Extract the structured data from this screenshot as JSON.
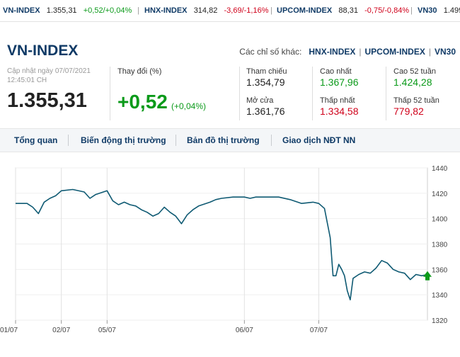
{
  "ticker": [
    {
      "name": "VN-INDEX",
      "value": "1.355,31",
      "change": "+0,52/+0,04%",
      "dir": "up"
    },
    {
      "name": "HNX-INDEX",
      "value": "314,82",
      "change": "-3,69/-1,16%",
      "dir": "down"
    },
    {
      "name": "UPCOM-INDEX",
      "value": "88,31",
      "change": "-0,75/-0,84%",
      "dir": "down"
    },
    {
      "name": "VN30",
      "value": "1.499",
      "change": "",
      "dir": "up"
    }
  ],
  "header": {
    "title": "VN-INDEX",
    "others_label": "Các chỉ số khác:",
    "others": [
      "HNX-INDEX",
      "UPCOM-INDEX",
      "VN30"
    ]
  },
  "summary": {
    "updated": "Cập nhật ngày 07/07/2021",
    "updated_time": "12:45:01 CH",
    "price": "1.355,31",
    "change_label": "Thay đổi (%)",
    "change": "+0,52",
    "change_pct": "(+0,04%)",
    "stats": [
      {
        "label": "Tham chiếu",
        "value": "1.354,79",
        "color": "neutral"
      },
      {
        "label": "Mở cửa",
        "value": "1.361,76",
        "color": "neutral"
      },
      {
        "label": "Cao nhất",
        "value": "1.367,96",
        "color": "up"
      },
      {
        "label": "Thấp nhất",
        "value": "1.334,58",
        "color": "down"
      },
      {
        "label": "Cao 52 tuần",
        "value": "1.424,28",
        "color": "up"
      },
      {
        "label": "Thấp 52 tuần",
        "value": "779,82",
        "color": "down"
      }
    ]
  },
  "tabs": [
    "Tổng quan",
    "Biến động thị trường",
    "Bản đồ thị trường",
    "Giao dịch NĐT NN"
  ],
  "chart_data": {
    "type": "line",
    "x_tick_labels": [
      "01/07",
      "02/07",
      "05/07",
      "06/07",
      "07/07"
    ],
    "ylim": [
      1320,
      1440
    ],
    "y_ticks": [
      1320,
      1340,
      1360,
      1380,
      1400,
      1420,
      1440
    ],
    "series": [
      {
        "values": [
          [
            0,
            1412
          ],
          [
            2,
            1412
          ],
          [
            3,
            1409
          ],
          [
            4,
            1404
          ],
          [
            5,
            1413
          ],
          [
            6,
            1416
          ],
          [
            7,
            1418
          ],
          [
            8,
            1422
          ],
          [
            10,
            1423
          ],
          [
            12,
            1421
          ],
          [
            13,
            1416
          ],
          [
            14,
            1419
          ],
          [
            16,
            1422
          ],
          [
            17,
            1414
          ],
          [
            18,
            1411
          ],
          [
            19,
            1413
          ],
          [
            20,
            1411
          ],
          [
            21,
            1410
          ],
          [
            22,
            1407
          ],
          [
            23,
            1405
          ],
          [
            24,
            1402
          ],
          [
            25,
            1404
          ],
          [
            26,
            1409
          ],
          [
            27,
            1405
          ],
          [
            28,
            1402
          ],
          [
            29,
            1396
          ],
          [
            30,
            1403
          ],
          [
            31,
            1407
          ],
          [
            32,
            1410
          ],
          [
            34,
            1413
          ],
          [
            35,
            1415
          ],
          [
            36,
            1416
          ],
          [
            38,
            1417
          ],
          [
            40,
            1417
          ],
          [
            41,
            1416
          ],
          [
            42,
            1417
          ],
          [
            45,
            1417
          ],
          [
            46,
            1417
          ],
          [
            48,
            1415
          ],
          [
            50,
            1412
          ],
          [
            52,
            1413
          ],
          [
            53,
            1412
          ],
          [
            54,
            1408
          ],
          [
            55,
            1385
          ],
          [
            55.5,
            1355
          ],
          [
            56,
            1355
          ],
          [
            56.5,
            1364
          ],
          [
            57,
            1360
          ],
          [
            57.5,
            1355
          ],
          [
            58,
            1343
          ],
          [
            58.5,
            1336
          ],
          [
            59,
            1353
          ],
          [
            60,
            1356
          ],
          [
            61,
            1358
          ],
          [
            62,
            1357
          ],
          [
            63,
            1361
          ],
          [
            64,
            1367
          ],
          [
            65,
            1365
          ],
          [
            66,
            1360
          ],
          [
            67,
            1358
          ],
          [
            68,
            1357
          ],
          [
            69,
            1352
          ],
          [
            70,
            1356
          ],
          [
            71,
            1355
          ],
          [
            72,
            1356
          ]
        ]
      }
    ],
    "current_value": 1355.31,
    "grid": true
  },
  "colors": {
    "line": "#0f5a73",
    "up": "#0b9a1a",
    "down": "#d0021b",
    "brand": "#0f3a66"
  }
}
